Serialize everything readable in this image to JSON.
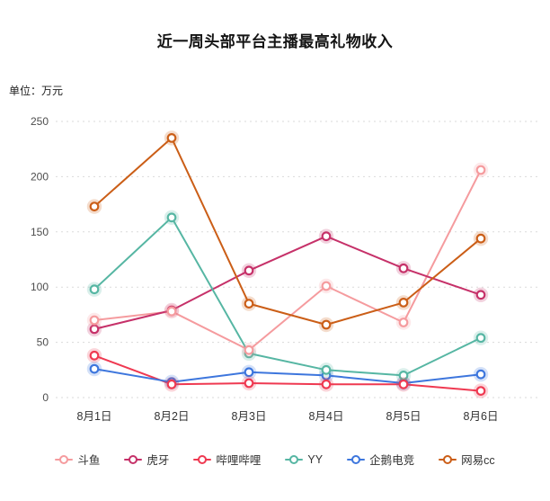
{
  "title": "近一周头部平台主播最高礼物收入",
  "unit_label": "单位：万元",
  "chart_data": {
    "type": "line",
    "title": "近一周头部平台主播最高礼物收入",
    "ylabel": "单位：万元",
    "xlabel": "",
    "categories": [
      "8月1日",
      "8月2日",
      "8月3日",
      "8月4日",
      "8月5日",
      "8月6日"
    ],
    "series": [
      {
        "name": "斗鱼",
        "color": "#F59B9E",
        "values": [
          70,
          78,
          43,
          101,
          68,
          206
        ]
      },
      {
        "name": "虎牙",
        "color": "#C63169",
        "values": [
          62,
          79,
          115,
          146,
          117,
          93
        ]
      },
      {
        "name": "哔哩哔哩",
        "color": "#EF3951",
        "values": [
          38,
          12,
          13,
          12,
          12,
          6
        ]
      },
      {
        "name": "YY",
        "color": "#56B6A3",
        "values": [
          98,
          163,
          40,
          25,
          20,
          54
        ]
      },
      {
        "name": "企鹅电竞",
        "color": "#3D76DD",
        "values": [
          26,
          14,
          23,
          20,
          13,
          21
        ]
      },
      {
        "name": "网易cc",
        "color": "#CB5E17",
        "values": [
          173,
          235,
          85,
          66,
          86,
          144
        ]
      }
    ],
    "ylim": [
      0,
      250
    ],
    "ytick_step": 50,
    "grid": "horizontal-dashed",
    "grid_color": "#dadada",
    "legend_position": "bottom",
    "marker": "hollow-circle"
  }
}
